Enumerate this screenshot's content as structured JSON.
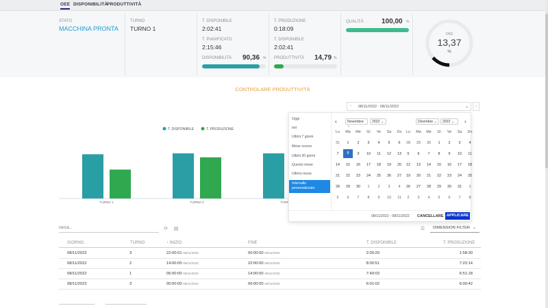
{
  "nav": {
    "tabs": [
      "OEE",
      "DISPONIBILITÀ",
      "PRODUTTIVITÀ"
    ]
  },
  "kpi": {
    "stato_label": "STATO",
    "stato_value": "MACCHINA PRONTA",
    "turno_label": "TURNO",
    "turno_value": "TURNO 1",
    "t_disponibile_label": "T. DISPONIBILE",
    "t_disponibile_value": "2:02:41",
    "t_pianificato_label": "T. PIANIFICATO",
    "t_pianificato_value": "2:15:46",
    "disponibilita_label": "DISPONIBILITÀ",
    "disponibilita_value": "90,36",
    "disponibilita_pct": 90.36,
    "t_produzione_label": "T. PRODUZIONE",
    "t_produzione_value": "0:18:09",
    "t_disponibile2_label": "T. DISPONIBILE",
    "t_disponibile2_value": "2:02:41",
    "produttivita_label": "PRODUTTIVITÀ",
    "produttivita_value": "14,79",
    "produttivita_pct": 14.79,
    "qualita_label": "QUALITÀ",
    "qualita_value": "100,00",
    "qualita_pct": 100,
    "oee_label": "OEE",
    "oee_value": "13,37",
    "oee_unit": "%",
    "oee_pct": 13.37,
    "percent": "%"
  },
  "section_title": "CONTROLARE PRODUTTIVITÀ",
  "date_range_input": "08/11/2022 - 08/11/2022",
  "chart_data": {
    "type": "bar",
    "categories": [
      "TURNO 1",
      "TURNO 2",
      "TURNO 3"
    ],
    "series": [
      {
        "name": "T. DISPONIBILE",
        "color": "#2a9ea5",
        "values": [
          2.02,
          2.06,
          2.06
        ]
      },
      {
        "name": "T. PRODUZIONE",
        "color": "#2fa84f",
        "values": [
          1.32,
          1.88,
          null
        ]
      }
    ],
    "title": "",
    "xlabel": "",
    "ylabel": "",
    "ylim": [
      0,
      2.5
    ],
    "grid": false,
    "legend": "top-center"
  },
  "calendar": {
    "presets": [
      "Oggi",
      "Ieri",
      "Ultimi 7 giorni",
      "Mese scorso",
      "Ultimi 30 giorni",
      "Questo mese",
      "Ultimo mese",
      "Intervallo personalizzato"
    ],
    "active_preset": "Intervallo personalizzato",
    "left": {
      "month": "Novembre",
      "year": "2022"
    },
    "right": {
      "month": "Dicembre",
      "year": "2022"
    },
    "weekdays": [
      "Lu",
      "Ma",
      "Me",
      "Gi",
      "Ve",
      "Sa",
      "Do"
    ],
    "left_days": [
      [
        "31",
        "1",
        "2",
        "3",
        "4",
        "5",
        "6"
      ],
      [
        "7",
        "8",
        "9",
        "10",
        "11",
        "12",
        "13"
      ],
      [
        "14",
        "15",
        "16",
        "17",
        "18",
        "19",
        "20"
      ],
      [
        "21",
        "22",
        "23",
        "24",
        "25",
        "26",
        "27"
      ],
      [
        "28",
        "29",
        "30",
        "1",
        "2",
        "3",
        "4"
      ],
      [
        "5",
        "6",
        "7",
        "8",
        "9",
        "10",
        "11"
      ]
    ],
    "right_days": [
      [
        "28",
        "29",
        "30",
        "1",
        "2",
        "3",
        "4"
      ],
      [
        "5",
        "6",
        "7",
        "8",
        "9",
        "10",
        "11"
      ],
      [
        "12",
        "13",
        "14",
        "15",
        "16",
        "17",
        "18"
      ],
      [
        "19",
        "20",
        "21",
        "22",
        "23",
        "24",
        "25"
      ],
      [
        "26",
        "27",
        "28",
        "29",
        "30",
        "31",
        "1"
      ],
      [
        "2",
        "3",
        "4",
        "5",
        "6",
        "7",
        "8"
      ]
    ],
    "selected_day": "8",
    "footer_range": "08/11/2022 - 08/11/2022",
    "cancel": "CANCELLARE",
    "apply": "APPLICARE"
  },
  "search": {
    "placeholder": "cerca..."
  },
  "dimension_filter": "DIMENSION FILTER",
  "table": {
    "headers": [
      "GIORNO",
      "TURNO",
      "INIZIO",
      "FINE",
      "T. DISPONIBILE",
      "T. PRODUZIONE"
    ],
    "rows": [
      {
        "giorno": "08/11/2022",
        "turno": "3",
        "inizio": "22:00:01",
        "inizio_d": "08/11/2022",
        "fine": "00:00:00",
        "fine_d": "08/11/2022",
        "disp": "2:00:20",
        "prod": "1:58:30"
      },
      {
        "giorno": "08/11/2022",
        "turno": "2",
        "inizio": "14:00:00",
        "inizio_d": "08/11/2022",
        "fine": "22:00:00",
        "fine_d": "08/11/2022",
        "disp": "8:00:51",
        "prod": "7:22:14"
      },
      {
        "giorno": "08/11/2022",
        "turno": "1",
        "inizio": "06:00:00",
        "inizio_d": "08/11/2022",
        "fine": "14:00:00",
        "fine_d": "08/11/2022",
        "disp": "7:49:03",
        "prod": "6:51:18"
      },
      {
        "giorno": "08/11/2022",
        "turno": "3",
        "inizio": "00:00:00",
        "inizio_d": "08/11/2022",
        "fine": "06:00:00",
        "fine_d": "08/11/2022",
        "disp": "6:01:02",
        "prod": "6:00:42"
      }
    ]
  }
}
